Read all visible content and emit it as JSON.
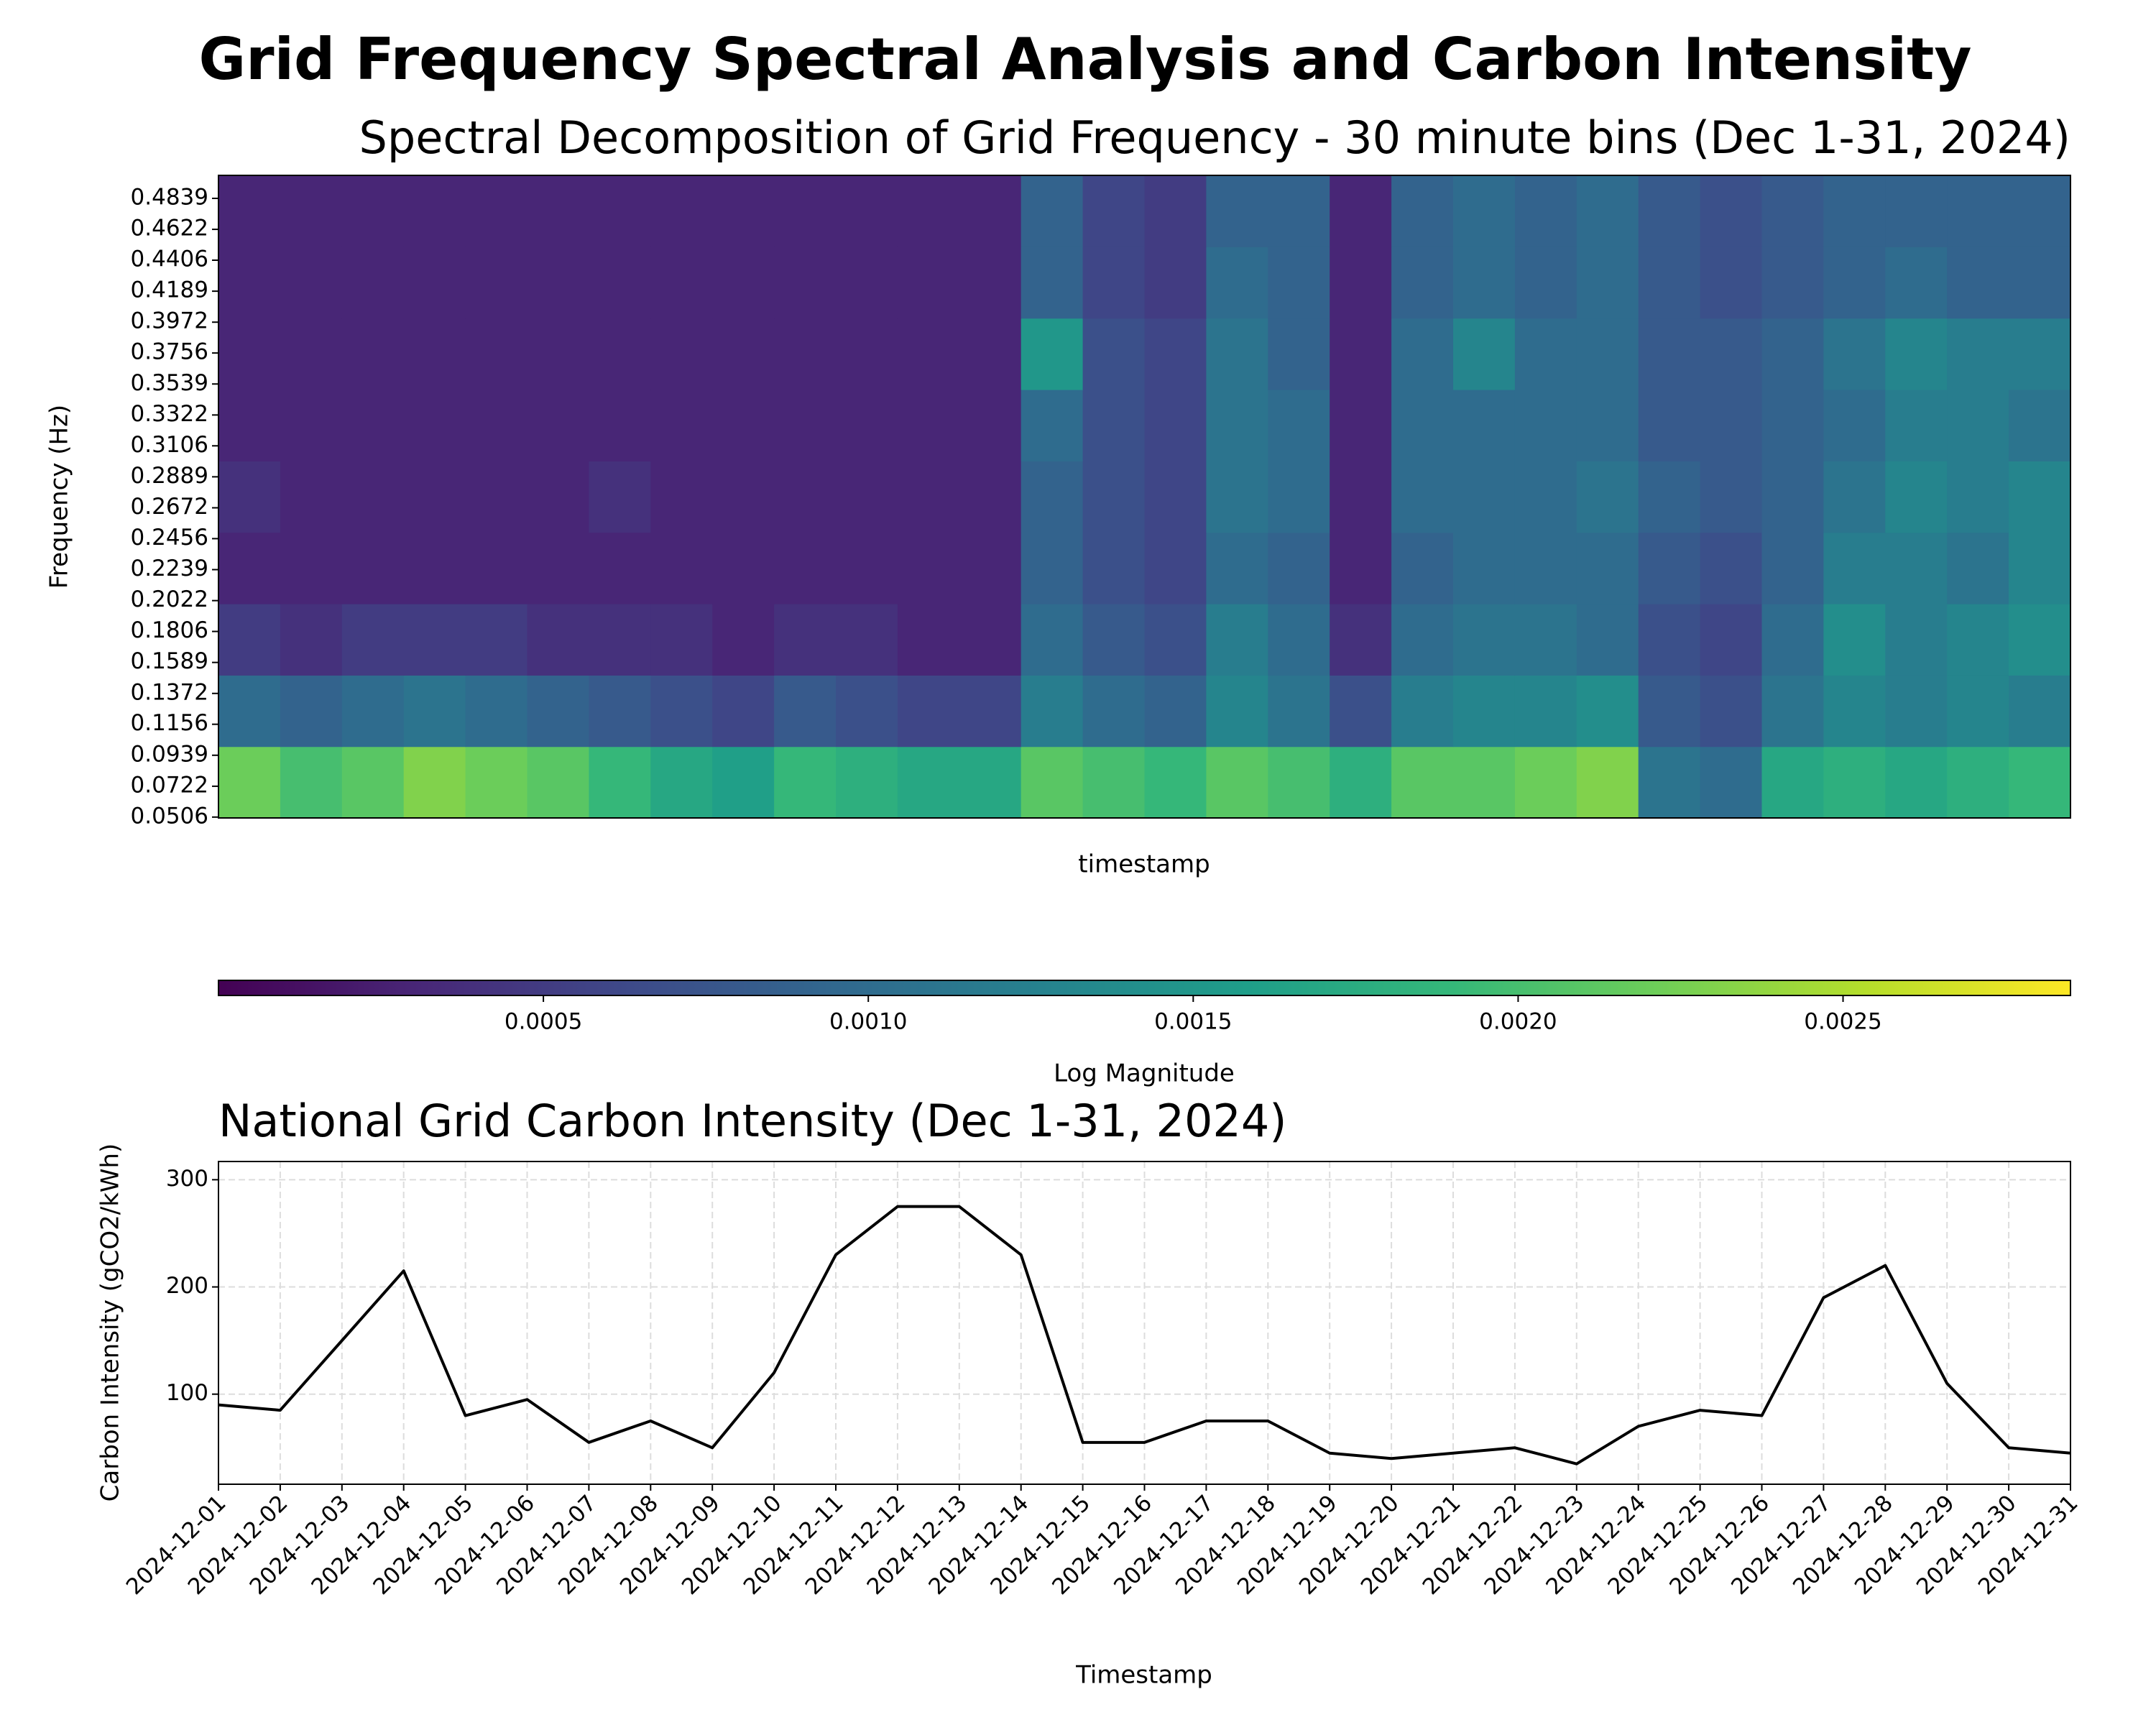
{
  "title": "Grid Frequency Spectral Analysis and Carbon Intensity",
  "chart_data": [
    {
      "type": "heatmap",
      "title": "Spectral Decomposition of Grid Frequency - 30 minute bins (Dec 1-31, 2024)",
      "xlabel": "timestamp",
      "ylabel": "Frequency (Hz)",
      "xlim": [
        "2024-12-01",
        "2024-12-31"
      ],
      "x": [
        "2024-12-01",
        "2024-12-02",
        "2024-12-03",
        "2024-12-04",
        "2024-12-05",
        "2024-12-06",
        "2024-12-07",
        "2024-12-08",
        "2024-12-09",
        "2024-12-10",
        "2024-12-11",
        "2024-12-12",
        "2024-12-13",
        "2024-12-14",
        "2024-12-15",
        "2024-12-16",
        "2024-12-17",
        "2024-12-18",
        "2024-12-19",
        "2024-12-20",
        "2024-12-21",
        "2024-12-22",
        "2024-12-23",
        "2024-12-24",
        "2024-12-25",
        "2024-12-26",
        "2024-12-27",
        "2024-12-28",
        "2024-12-29",
        "2024-12-30"
      ],
      "ybins": [
        0.05,
        0.1,
        0.15,
        0.2,
        0.25,
        0.3,
        0.35,
        0.4,
        0.45,
        0.5
      ],
      "z": [
        [
          0.0022,
          0.002,
          0.0021,
          0.0023,
          0.0022,
          0.0021,
          0.0019,
          0.0017,
          0.0016,
          0.0019,
          0.0018,
          0.0017,
          0.0017,
          0.0021,
          0.002,
          0.0019,
          0.0021,
          0.002,
          0.0018,
          0.0021,
          0.0021,
          0.0022,
          0.0023,
          0.0011,
          0.001,
          0.0017,
          0.0018,
          0.0017,
          0.0018,
          0.0019
        ],
        [
          0.001,
          0.0009,
          0.001,
          0.0011,
          0.001,
          0.0009,
          0.0008,
          0.0007,
          0.0006,
          0.0008,
          0.0007,
          0.0006,
          0.0006,
          0.0012,
          0.001,
          0.0009,
          0.0013,
          0.0011,
          0.0007,
          0.0012,
          0.0013,
          0.0013,
          0.0014,
          0.0008,
          0.0007,
          0.0011,
          0.0013,
          0.0012,
          0.0013,
          0.0012
        ],
        [
          0.0005,
          0.0004,
          0.0005,
          0.0005,
          0.0005,
          0.0004,
          0.0004,
          0.0004,
          0.0003,
          0.0004,
          0.0004,
          0.0003,
          0.0003,
          0.001,
          0.0008,
          0.0007,
          0.0012,
          0.001,
          0.0004,
          0.001,
          0.0011,
          0.0011,
          0.001,
          0.0007,
          0.0006,
          0.001,
          0.0014,
          0.0012,
          0.0013,
          0.0014
        ],
        [
          0.0003,
          0.0003,
          0.0003,
          0.0003,
          0.0003,
          0.0003,
          0.0003,
          0.0003,
          0.0003,
          0.0003,
          0.0003,
          0.0003,
          0.0003,
          0.0009,
          0.0007,
          0.0006,
          0.001,
          0.0009,
          0.0003,
          0.0009,
          0.001,
          0.001,
          0.001,
          0.0008,
          0.0007,
          0.0009,
          0.0012,
          0.0012,
          0.0011,
          0.0013
        ],
        [
          0.0004,
          0.0003,
          0.0003,
          0.0003,
          0.0003,
          0.0003,
          0.0004,
          0.0003,
          0.0003,
          0.0003,
          0.0003,
          0.0003,
          0.0003,
          0.0009,
          0.0007,
          0.0006,
          0.0011,
          0.001,
          0.0003,
          0.001,
          0.001,
          0.001,
          0.0011,
          0.0009,
          0.0008,
          0.0009,
          0.0011,
          0.0013,
          0.0012,
          0.0013
        ],
        [
          0.0003,
          0.0003,
          0.0003,
          0.0003,
          0.0003,
          0.0003,
          0.0003,
          0.0003,
          0.0003,
          0.0003,
          0.0003,
          0.0003,
          0.0003,
          0.001,
          0.0007,
          0.0006,
          0.0011,
          0.001,
          0.0003,
          0.001,
          0.001,
          0.001,
          0.001,
          0.0008,
          0.0008,
          0.0009,
          0.001,
          0.0012,
          0.0012,
          0.0011
        ],
        [
          0.0003,
          0.0003,
          0.0003,
          0.0003,
          0.0003,
          0.0003,
          0.0003,
          0.0003,
          0.0003,
          0.0003,
          0.0003,
          0.0003,
          0.0003,
          0.0015,
          0.0007,
          0.0006,
          0.0011,
          0.0009,
          0.0003,
          0.001,
          0.0013,
          0.001,
          0.001,
          0.0008,
          0.0008,
          0.0009,
          0.0011,
          0.0013,
          0.0012,
          0.0012
        ],
        [
          0.0003,
          0.0003,
          0.0003,
          0.0003,
          0.0003,
          0.0003,
          0.0003,
          0.0003,
          0.0003,
          0.0003,
          0.0003,
          0.0003,
          0.0003,
          0.0009,
          0.0006,
          0.0005,
          0.001,
          0.0009,
          0.0003,
          0.0009,
          0.001,
          0.0009,
          0.001,
          0.0008,
          0.0007,
          0.0008,
          0.0009,
          0.001,
          0.0009,
          0.0009
        ],
        [
          0.0003,
          0.0003,
          0.0003,
          0.0003,
          0.0003,
          0.0003,
          0.0003,
          0.0003,
          0.0003,
          0.0003,
          0.0003,
          0.0003,
          0.0003,
          0.0009,
          0.0006,
          0.0005,
          0.0009,
          0.0009,
          0.0003,
          0.0009,
          0.001,
          0.0009,
          0.001,
          0.0008,
          0.0007,
          0.0008,
          0.0009,
          0.0009,
          0.0009,
          0.0009
        ]
      ],
      "ylim": [
        0.05,
        0.5
      ],
      "yticks": [
        0.0506,
        0.0722,
        0.0939,
        0.1156,
        0.1372,
        0.1589,
        0.1806,
        0.2022,
        0.2239,
        0.2456,
        0.2672,
        0.2889,
        0.3106,
        0.3322,
        0.3539,
        0.3756,
        0.3972,
        0.4189,
        0.4406,
        0.4622,
        0.4839
      ],
      "colormap": "viridis",
      "colorbar": {
        "label": "Log Magnitude",
        "lim": [
          0,
          0.00285
        ],
        "ticks": [
          0.0005,
          {
            "value": 0.001,
            "label": "0.0010"
          },
          0.0015,
          {
            "value": 0.002,
            "label": "0.0020"
          },
          0.0025
        ]
      }
    },
    {
      "type": "line",
      "title": "National Grid Carbon Intensity (Dec 1-31, 2024)",
      "xlabel": "Timestamp",
      "ylabel": "Carbon Intensity (gCO2/kWh)",
      "x": [
        "2024-12-01",
        "2024-12-02",
        "2024-12-03",
        "2024-12-04",
        "2024-12-05",
        "2024-12-06",
        "2024-12-07",
        "2024-12-08",
        "2024-12-09",
        "2024-12-10",
        "2024-12-11",
        "2024-12-12",
        "2024-12-13",
        "2024-12-14",
        "2024-12-15",
        "2024-12-16",
        "2024-12-17",
        "2024-12-18",
        "2024-12-19",
        "2024-12-20",
        "2024-12-21",
        "2024-12-22",
        "2024-12-23",
        "2024-12-24",
        "2024-12-25",
        "2024-12-26",
        "2024-12-27",
        "2024-12-28",
        "2024-12-29",
        "2024-12-30",
        "2024-12-31"
      ],
      "series": [
        {
          "color": "#000000",
          "values": [
            90,
            85,
            150,
            215,
            80,
            95,
            55,
            75,
            50,
            120,
            230,
            275,
            275,
            230,
            55,
            55,
            75,
            75,
            45,
            40,
            45,
            50,
            35,
            70,
            85,
            80,
            190,
            220,
            110,
            50,
            45
          ]
        }
      ],
      "ylim": [
        16,
        317
      ],
      "yticks": [
        100,
        200,
        300
      ],
      "grid": true
    }
  ]
}
